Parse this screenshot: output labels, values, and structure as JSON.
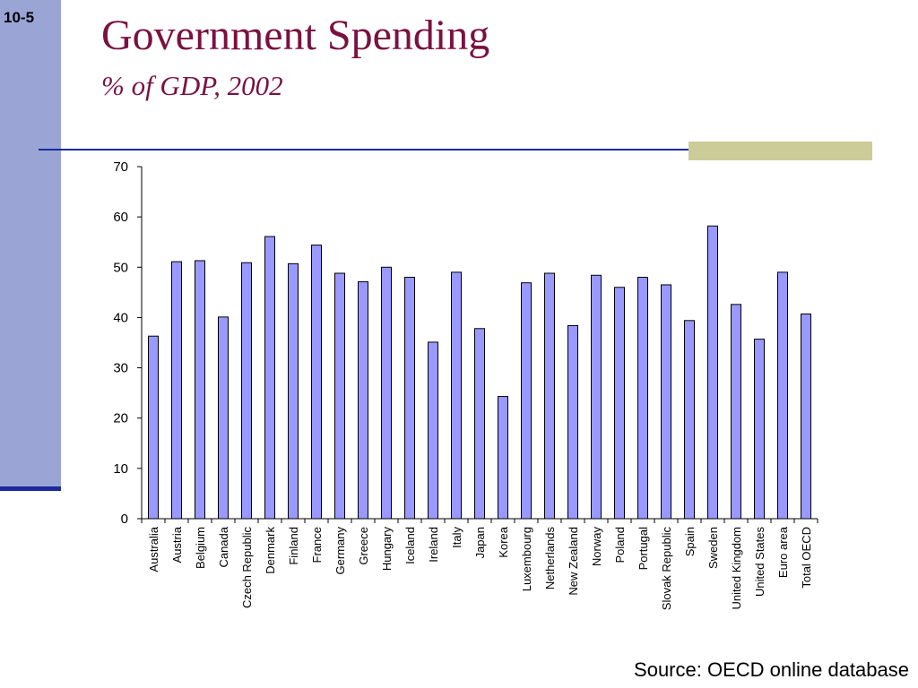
{
  "slide": {
    "number": "10-5",
    "title": "Government Spending",
    "subtitle": "% of GDP, 2002",
    "source": "Source: OECD online database"
  },
  "colors": {
    "bar_fill": "#9999ff",
    "title": "#7a1240",
    "accent_blue": "#1a2a9c"
  },
  "chart_data": {
    "type": "bar",
    "title": "",
    "xlabel": "",
    "ylabel": "",
    "ylim": [
      0,
      70
    ],
    "yticks": [
      0,
      10,
      20,
      30,
      40,
      50,
      60,
      70
    ],
    "grid": false,
    "categories": [
      "Australia",
      "Austria",
      "Belgium",
      "Canada",
      "Czech Republic",
      "Denmark",
      "Finland",
      "France",
      "Germany",
      "Greece",
      "Hungary",
      "Iceland",
      "Ireland",
      "Italy",
      "Japan",
      "Korea",
      "Luxembourg",
      "Netherlands",
      "New Zealand",
      "Norway",
      "Poland",
      "Portugal",
      "Slovak Republic",
      "Spain",
      "Sweden",
      "United Kingdom",
      "United States",
      "Euro area",
      "Total OECD"
    ],
    "values": [
      36.3,
      51.1,
      51.3,
      40.1,
      50.9,
      56.1,
      50.7,
      54.4,
      48.8,
      47.1,
      50.0,
      48.0,
      35.1,
      49.0,
      37.8,
      24.3,
      46.9,
      48.8,
      38.4,
      48.4,
      46.0,
      48.0,
      46.5,
      39.4,
      58.2,
      42.6,
      35.7,
      49.0,
      40.7
    ]
  }
}
